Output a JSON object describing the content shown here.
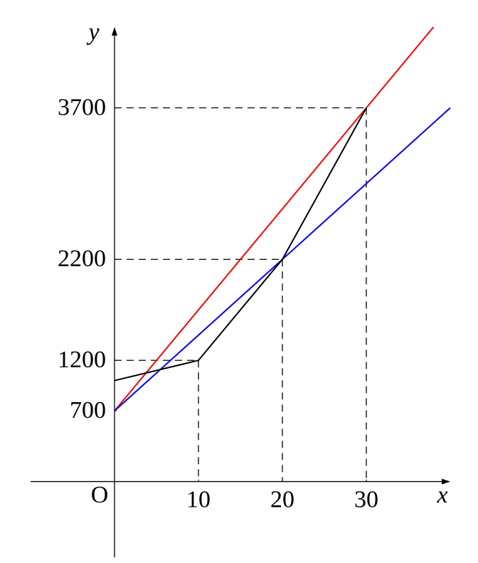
{
  "chart_data": {
    "type": "line",
    "x_label": "x",
    "y_label": "y",
    "origin_label": "O",
    "xlim": [
      -10,
      40
    ],
    "ylim": [
      -750,
      4500
    ],
    "xticks": [
      10,
      20,
      30
    ],
    "yticks": [
      700,
      1200,
      2200,
      3700
    ],
    "series": [
      {
        "color": "#ff0000",
        "x": [
          0,
          38
        ],
        "values": [
          700,
          4500
        ]
      },
      {
        "color": "#0000ff",
        "x": [
          0,
          40
        ],
        "values": [
          700,
          3700
        ]
      },
      {
        "color": "#000000",
        "x": [
          0,
          10,
          20,
          30
        ],
        "values": [
          1000,
          1200,
          2200,
          3700
        ]
      }
    ]
  }
}
